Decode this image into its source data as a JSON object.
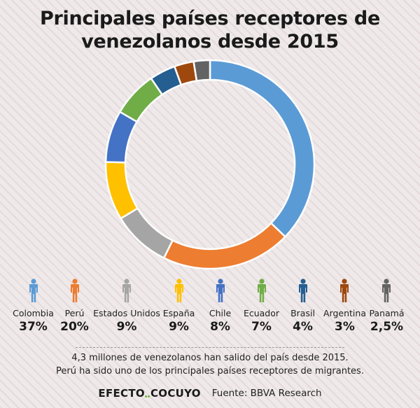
{
  "title": {
    "line1": "Principales países receptores de",
    "line2": "venezolanos desde 2015"
  },
  "chart_data": {
    "type": "pie",
    "variant": "donut",
    "title": "Principales países receptores de venezolanos desde 2015",
    "categories": [
      "Colombia",
      "Perú",
      "Estados Unidos",
      "España",
      "Chile",
      "Ecuador",
      "Brasil",
      "Argentina",
      "Panamá"
    ],
    "values": [
      37,
      20,
      9,
      9,
      8,
      7,
      4,
      3,
      2.5
    ],
    "value_labels": [
      "37%",
      "20%",
      "9%",
      "9%",
      "8%",
      "7%",
      "4%",
      "3%",
      "2,5%"
    ],
    "colors": [
      "#5b9bd5",
      "#ed7d31",
      "#a5a5a5",
      "#ffc000",
      "#4472c4",
      "#70ad47",
      "#255e91",
      "#9e480e",
      "#636363"
    ],
    "legend_placement": "bottom"
  },
  "note": {
    "line1": "4,3 millones de venezolanos han salido del país desde 2015.",
    "line2": "Perú ha sido uno de los principales países receptores de migrantes."
  },
  "footer": {
    "brand_left": "EFECTO",
    "brand_right": "COCUYO",
    "brand_accent": "#6cb33f",
    "source": "Fuente: BBVA Research"
  }
}
